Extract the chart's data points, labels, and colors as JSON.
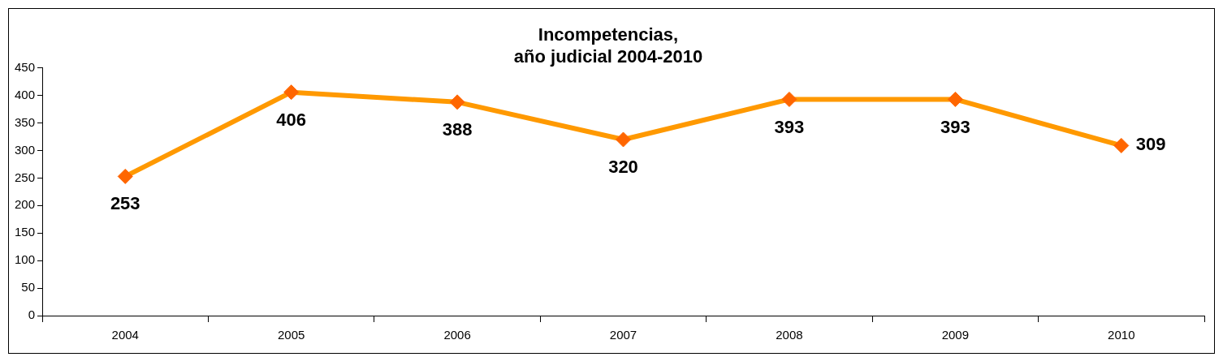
{
  "chart_data": {
    "type": "line",
    "title": "Incompetencias,\naño judicial 2004-2010",
    "categories": [
      "2004",
      "2005",
      "2006",
      "2007",
      "2008",
      "2009",
      "2010"
    ],
    "series": [
      {
        "color": "#ff9900",
        "values": [
          253,
          406,
          388,
          320,
          393,
          393,
          309
        ]
      }
    ],
    "ylim": [
      0,
      450
    ],
    "yticks": [
      0,
      50,
      100,
      150,
      200,
      250,
      300,
      350,
      400,
      450
    ],
    "grid": false,
    "legend": false,
    "marker": "diamond",
    "line_style": "solid",
    "data_labels": true
  }
}
